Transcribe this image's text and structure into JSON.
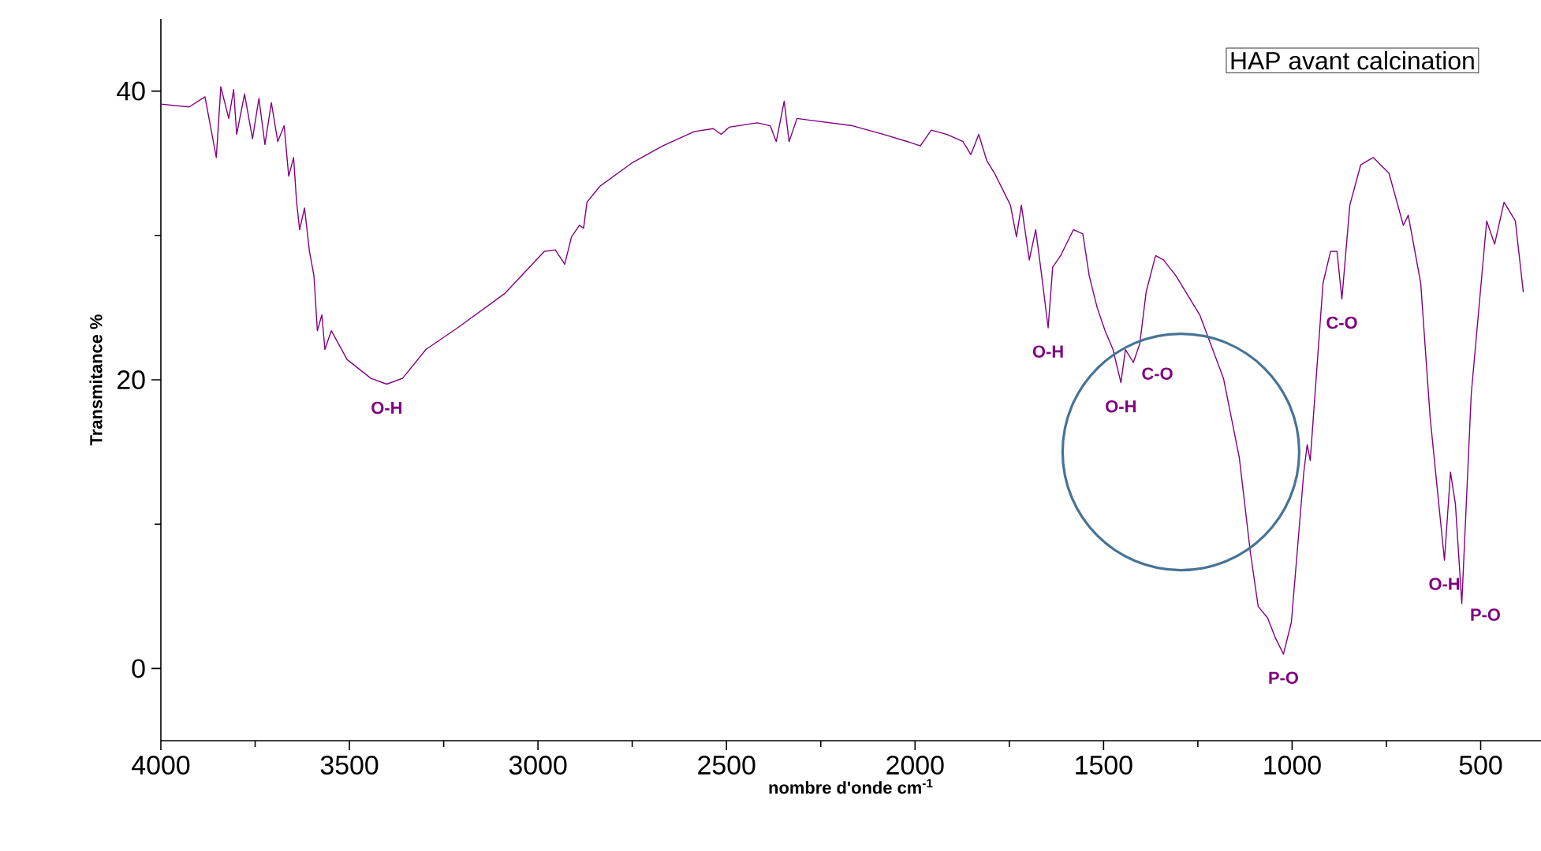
{
  "chart_data": {
    "type": "line",
    "xlabel": "nombre d'onde cm$^{-1}$",
    "ylabel": "Transmitance %",
    "xlim": [
      4000,
      340
    ],
    "ylim": [
      -5,
      45
    ],
    "xticks": [
      4000,
      3500,
      3000,
      2500,
      2000,
      1500,
      1000,
      500
    ],
    "yticks": [
      0,
      20,
      40
    ],
    "marker": "none",
    "line_style": "solid",
    "grid": false,
    "annotations": [
      "HAP avant calcination",
      {
        "text": "O-H",
        "x": 3401,
        "y": 19.7
      },
      {
        "text": "O-H",
        "x": 1647,
        "y": 23.6
      },
      {
        "text": "O-H",
        "x": 1454,
        "y": 19.8
      },
      {
        "text": "C-O",
        "x": 1421,
        "y": 21.2
      },
      {
        "text": "P-O",
        "x": 1023,
        "y": 1.0
      },
      {
        "text": "C-O",
        "x": 868,
        "y": 25.6
      },
      {
        "text": "O-H",
        "x": 596,
        "y": 7.5
      },
      {
        "text": "P-O",
        "x": 550,
        "y": 4.5
      }
    ],
    "series": [
      {
        "color": "#800080",
        "x": [
          4000,
          3925,
          3883,
          3853,
          3841,
          3820,
          3807,
          3799,
          3778,
          3757,
          3740,
          3724,
          3707,
          3690,
          3673,
          3661,
          3648,
          3640,
          3632,
          3619,
          3606,
          3594,
          3585,
          3573,
          3565,
          3548,
          3506,
          3443,
          3401,
          3359,
          3297,
          3213,
          3087,
          2983,
          2954,
          2929,
          2911,
          2890,
          2879,
          2870,
          2836,
          2752,
          2669,
          2585,
          2535,
          2514,
          2493,
          2418,
          2384,
          2368,
          2347,
          2334,
          2313,
          2166,
          2083,
          2020,
          1986,
          1957,
          1915,
          1873,
          1852,
          1831,
          1810,
          1789,
          1768,
          1747,
          1731,
          1718,
          1697,
          1680,
          1664,
          1647,
          1635,
          1614,
          1580,
          1555,
          1538,
          1517,
          1496,
          1475,
          1454,
          1442,
          1421,
          1404,
          1387,
          1362,
          1341,
          1308,
          1245,
          1182,
          1140,
          1111,
          1090,
          1065,
          1044,
          1023,
          1002,
          969,
          960,
          952,
          918,
          898,
          881,
          868,
          847,
          818,
          785,
          743,
          705,
          692,
          659,
          634,
          613,
          596,
          580,
          567,
          550,
          525,
          484,
          463,
          438,
          408,
          387
        ],
        "values": [
          39.1,
          38.9,
          39.6,
          35.4,
          40.3,
          38.1,
          40.1,
          37.0,
          39.8,
          36.7,
          39.5,
          36.3,
          39.2,
          36.5,
          37.6,
          34.1,
          35.4,
          32.3,
          30.4,
          31.9,
          28.9,
          27.2,
          23.4,
          24.5,
          22.1,
          23.4,
          21.4,
          20.1,
          19.7,
          20.1,
          22.1,
          23.6,
          26.0,
          28.9,
          29.0,
          28.0,
          29.9,
          30.7,
          30.5,
          32.3,
          33.4,
          35.0,
          36.2,
          37.2,
          37.4,
          37.0,
          37.5,
          37.8,
          37.6,
          36.5,
          39.3,
          36.5,
          38.1,
          37.6,
          37.0,
          36.5,
          36.2,
          37.3,
          37.0,
          36.5,
          35.6,
          37.0,
          35.2,
          34.3,
          33.2,
          32.1,
          29.9,
          32.1,
          28.3,
          30.4,
          27.2,
          23.6,
          27.8,
          28.6,
          30.4,
          30.1,
          27.2,
          25.0,
          23.4,
          22.1,
          19.8,
          22.1,
          21.2,
          22.5,
          26.1,
          28.6,
          28.3,
          27.2,
          24.5,
          20.1,
          14.6,
          8.1,
          4.3,
          3.5,
          2.1,
          1.0,
          3.2,
          13.6,
          15.5,
          14.4,
          26.7,
          28.9,
          28.9,
          25.6,
          32.1,
          34.9,
          35.4,
          34.3,
          30.7,
          31.4,
          26.7,
          17.4,
          11.9,
          7.5,
          13.6,
          11.4,
          4.5,
          19.0,
          31.0,
          29.4,
          32.3,
          31.0,
          26.1
        ]
      }
    ]
  }
}
